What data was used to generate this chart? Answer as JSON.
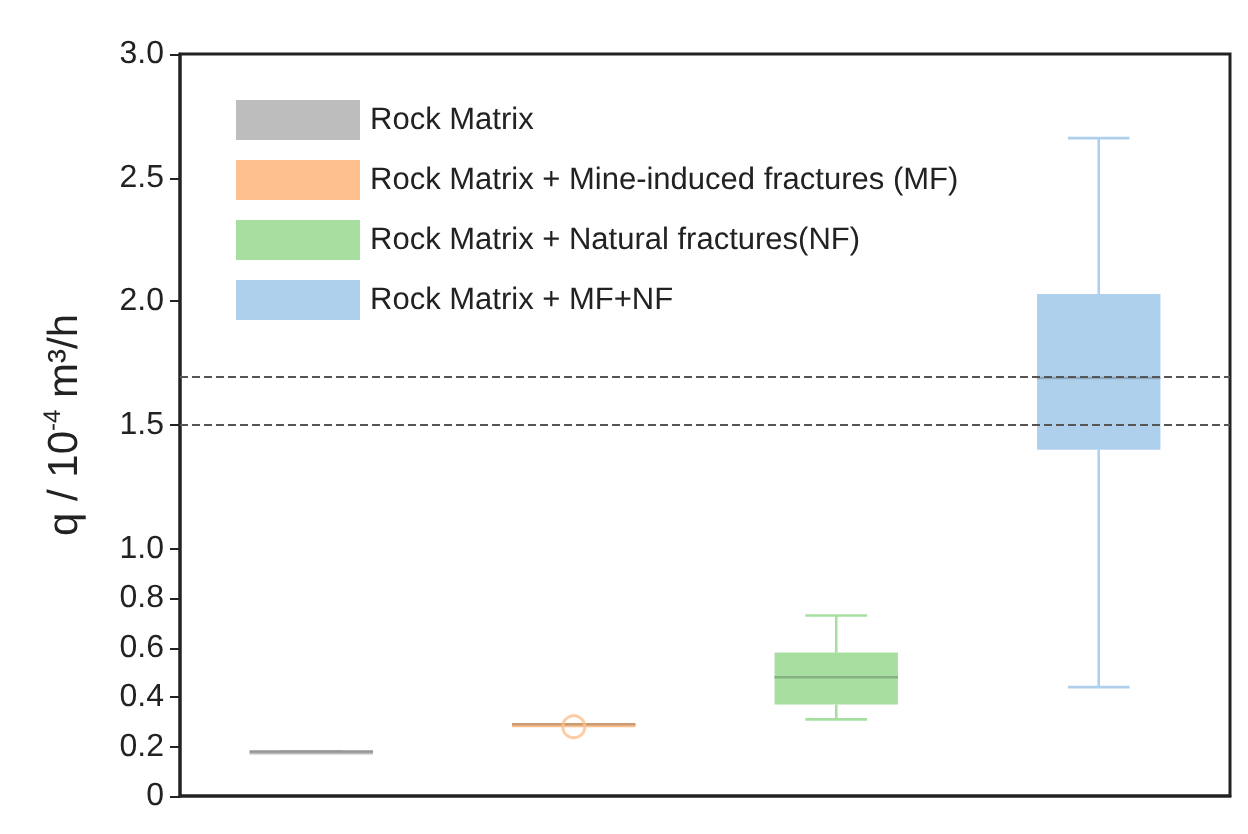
{
  "chart_data": {
    "type": "box",
    "ylabel": "q / 10$^{-4}$ m³/h",
    "categories": [
      null,
      null,
      null,
      null
    ],
    "series": [
      {
        "name": "Rock Matrix",
        "color": "#bdbdbd",
        "boxes": [
          {
            "low": 0.18,
            "q1": 0.18,
            "median": 0.18,
            "q3": 0.18,
            "high": 0.18
          },
          null,
          null,
          null
        ]
      },
      {
        "name": "Rock Matrix + Mine-induced fractures (MF)",
        "color": "#fdc08e",
        "boxes": [
          null,
          {
            "low": 0.29,
            "q1": 0.29,
            "median": 0.29,
            "q3": 0.29,
            "high": 0.29,
            "outliers": [
              0.28
            ]
          },
          null,
          null
        ]
      },
      {
        "name": "Rock Matrix + Natural fractures(NF)",
        "color": "#a6dfa0",
        "boxes": [
          null,
          null,
          {
            "low": 0.31,
            "q1": 0.37,
            "median": 0.48,
            "q3": 0.58,
            "high": 0.73
          },
          null
        ]
      },
      {
        "name": "Rock Matrix + MF+NF",
        "color": "#aed0ec",
        "boxes": [
          null,
          null,
          null,
          {
            "low": 0.44,
            "q1": 1.4,
            "median": 1.69,
            "q3": 2.03,
            "high": 2.66
          }
        ]
      }
    ],
    "ylim": [
      0,
      3
    ],
    "yticks": [
      0,
      0.2,
      0.4,
      0.6,
      0.8,
      {
        "value": 1,
        "label": "1.0"
      },
      1.5,
      {
        "value": 2,
        "label": "2.0"
      },
      2.5,
      {
        "value": 3,
        "label": "3.0"
      }
    ],
    "ref_lines": [
      {
        "axis": "y",
        "value": 1.7,
        "label": null,
        "color": "#555555",
        "line_style": "dashed"
      },
      {
        "axis": "y",
        "value": 1.5,
        "label": null,
        "color": "#555555",
        "line_style": "dashed"
      }
    ],
    "legend": "top left",
    "grid": false
  }
}
